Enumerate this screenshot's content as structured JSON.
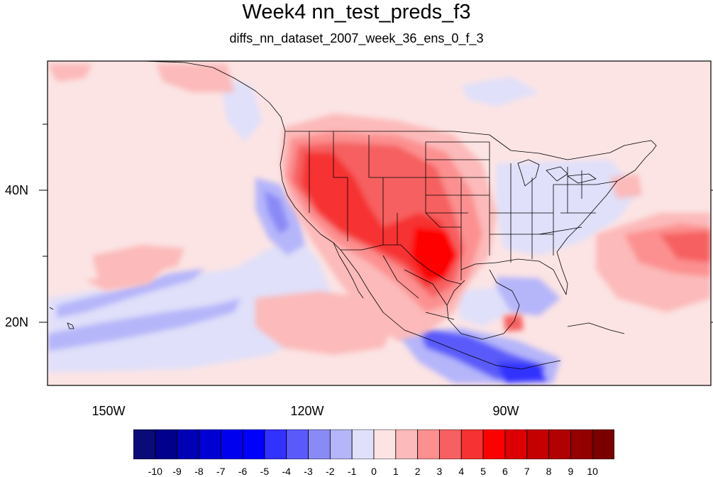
{
  "title": "Week4 nn_test_preds_f3",
  "subtitle": "diffs_nn_dataset_2007_week_36_ens_0_f_3",
  "map": {
    "projection": "cylindrical equidistant",
    "lon_range": [
      -160,
      -60
    ],
    "lat_range": [
      10,
      59
    ],
    "lon_labels": [
      {
        "lon": -150,
        "label": "150W"
      },
      {
        "lon": -120,
        "label": "120W"
      },
      {
        "lon": -90,
        "label": "90W"
      }
    ],
    "lat_labels": [
      {
        "lat": 40,
        "label": "40N"
      },
      {
        "lat": 20,
        "label": "20N"
      }
    ],
    "boundaries": "coastlines and US state borders",
    "field": "temperature difference, red = positive, blue = negative",
    "regions": [
      {
        "name": "western US southwest warm anomaly",
        "value": 4
      },
      {
        "name": "Texas / northern Mexico warm core",
        "value": 6
      },
      {
        "name": "southern Mexico Pacific cold anomaly",
        "value": -5
      },
      {
        "name": "eastern US near zero",
        "value": 0
      },
      {
        "name": "western Atlantic warm anomaly",
        "value": 3
      },
      {
        "name": "subtropical Pacific cool band",
        "value": -2
      }
    ]
  },
  "colorbar": {
    "labels": [
      "-10",
      "-9",
      "-8",
      "-7",
      "-6",
      "-5",
      "-4",
      "-3",
      "-2",
      "-1",
      "0",
      "1",
      "2",
      "3",
      "4",
      "5",
      "6",
      "7",
      "8",
      "9",
      "10"
    ],
    "colors": [
      "#0a0a78",
      "#00008c",
      "#0000b4",
      "#0000d2",
      "#0000ee",
      "#0000ff",
      "#3232ff",
      "#5a5afa",
      "#8a8af6",
      "#b5b5fa",
      "#e0e0fa",
      "#fce4e4",
      "#fcbaba",
      "#fc9090",
      "#f66060",
      "#f63232",
      "#ff0000",
      "#dc0000",
      "#c40000",
      "#b00000",
      "#940000",
      "#7a0000"
    ]
  }
}
